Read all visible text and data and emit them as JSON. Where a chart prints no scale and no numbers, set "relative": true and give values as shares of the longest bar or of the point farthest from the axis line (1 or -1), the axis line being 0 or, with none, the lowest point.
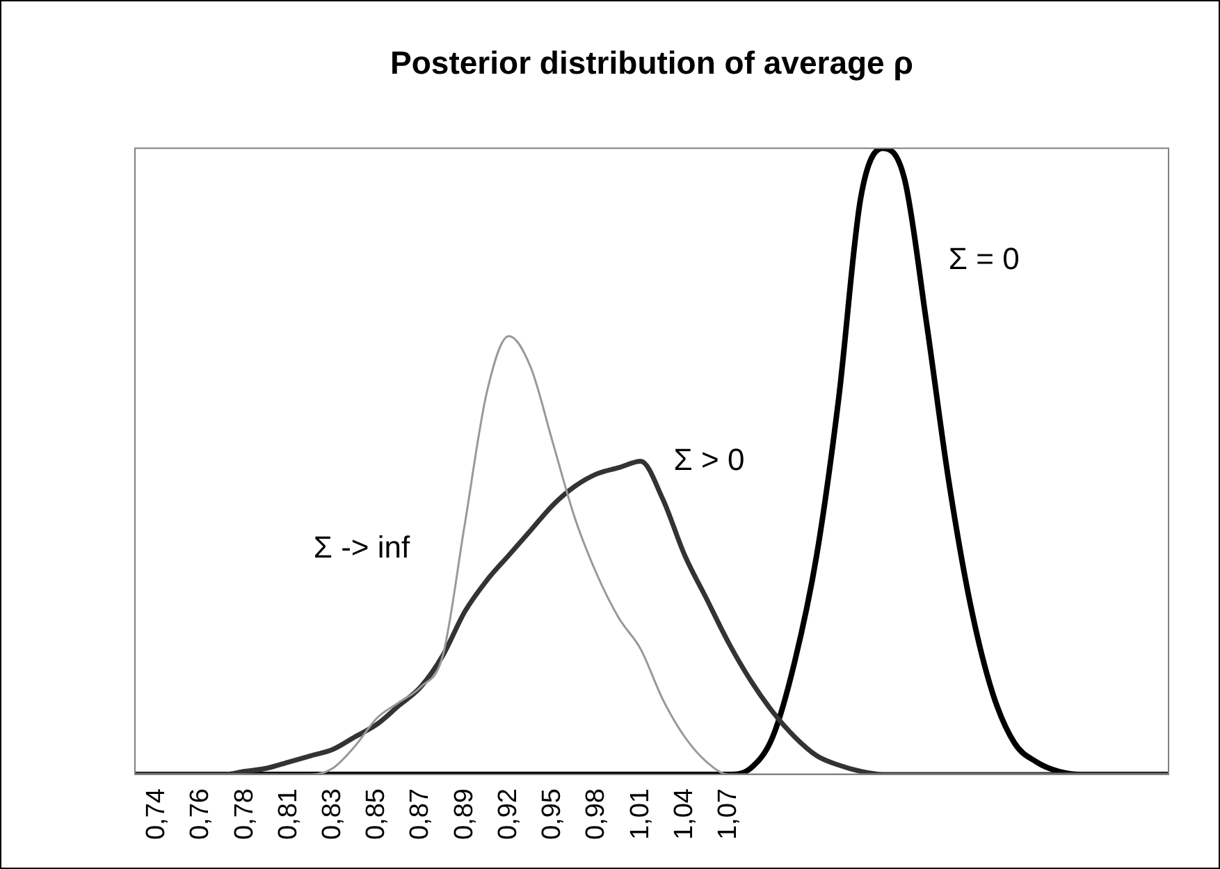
{
  "chart_data": {
    "type": "line",
    "title": "Posterior distribution of average ρ",
    "relative": true,
    "legend": false,
    "grid": false,
    "marker": "none",
    "categories": [
      null,
      "0,74",
      null,
      "0,76",
      null,
      "0,78",
      null,
      "0,81",
      null,
      "0,83",
      null,
      "0,85",
      null,
      "0,87",
      null,
      "0,89",
      null,
      "0,92",
      null,
      "0,95",
      null,
      "0,98",
      null,
      "1,01",
      null,
      "1,04",
      null,
      "1,07",
      null,
      null,
      null,
      null,
      null,
      null,
      null,
      null,
      null,
      null,
      null,
      null,
      null,
      null,
      null,
      null,
      null,
      null,
      null,
      null
    ],
    "series": [
      {
        "name": "Σ -> inf",
        "color": "#999999",
        "values": [
          0,
          0,
          0,
          0,
          0,
          0,
          0,
          0,
          0,
          0.01,
          0.045,
          0.09,
          0.115,
          0.14,
          0.19,
          0.4,
          0.61,
          0.7,
          0.65,
          0.53,
          0.41,
          0.32,
          0.25,
          0.2,
          0.12,
          0.06,
          0.02,
          0,
          0,
          0,
          0,
          0,
          0,
          0,
          0,
          0,
          0,
          0,
          0,
          0,
          0,
          0,
          0,
          0,
          0,
          0,
          0,
          0
        ]
      },
      {
        "name": "Σ > 0",
        "color": "#333333",
        "values": [
          0,
          0,
          0,
          0,
          0,
          0.005,
          0.01,
          0.02,
          0.03,
          0.04,
          0.06,
          0.08,
          0.11,
          0.14,
          0.19,
          0.26,
          0.31,
          0.35,
          0.39,
          0.43,
          0.46,
          0.48,
          0.49,
          0.5,
          0.44,
          0.35,
          0.28,
          0.21,
          0.15,
          0.1,
          0.06,
          0.03,
          0.015,
          0.005,
          0,
          0,
          0,
          0,
          0,
          0,
          0,
          0,
          0,
          0,
          0,
          0,
          0,
          0
        ]
      },
      {
        "name": "Σ = 0",
        "color": "#000000",
        "values": [
          0,
          0,
          0,
          0,
          0,
          0,
          0,
          0,
          0,
          0,
          0,
          0,
          0,
          0,
          0,
          0,
          0,
          0,
          0,
          0,
          0,
          0,
          0,
          0,
          0,
          0,
          0,
          0,
          0.01,
          0.06,
          0.18,
          0.35,
          0.6,
          0.92,
          1,
          0.95,
          0.72,
          0.47,
          0.27,
          0.13,
          0.05,
          0.02,
          0.005,
          0,
          0,
          0,
          0,
          0
        ]
      }
    ]
  }
}
